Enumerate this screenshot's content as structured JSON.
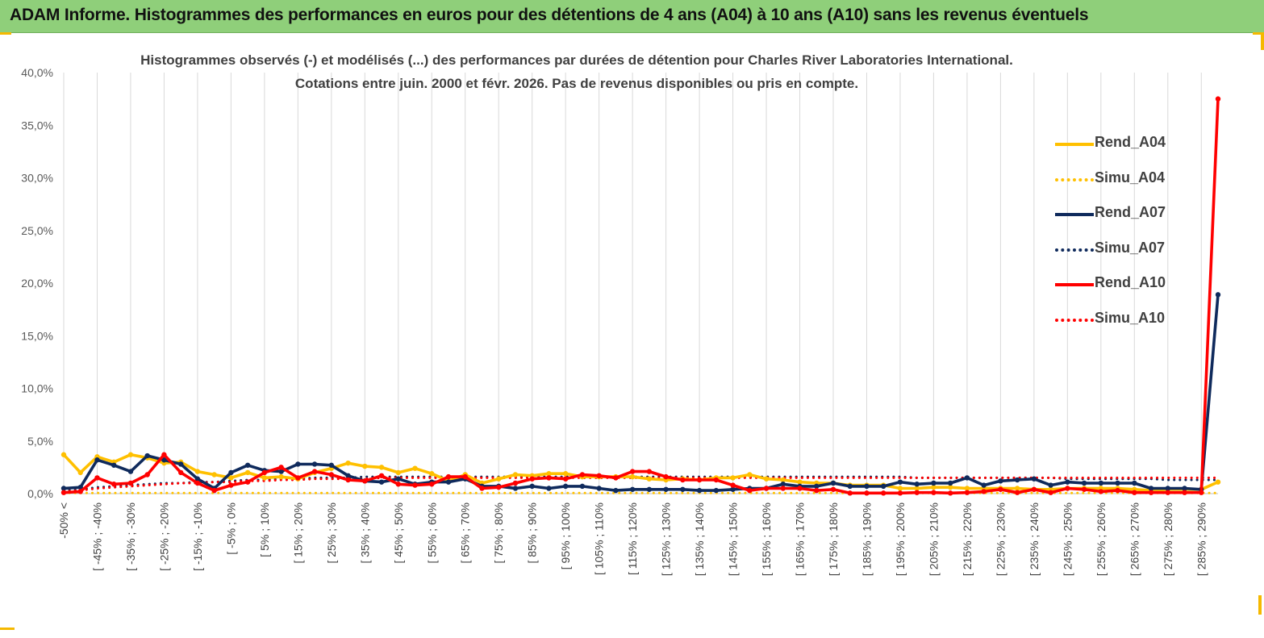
{
  "header": {
    "title": "ADAM Informe. Histogrammes des performances en euros pour des détentions de 4 ans (A04) à 10 ans (A10) sans les revenus éventuels"
  },
  "colors": {
    "banner": "#8fcf7a",
    "corner": "#f5b800",
    "A04": "#ffc000",
    "A07": "#0f2a5c",
    "A10": "#ff0000",
    "grid": "#d9d9d9"
  },
  "chart_data": {
    "type": "line",
    "title_lines": [
      "Histogrammes observés (-) et modélisés (...) des performances par durées de détention pour Charles River Laboratories International.",
      "Cotations entre juin. 2000 et févr. 2026. Pas de revenus disponibles ou pris en compte."
    ],
    "ylim": [
      0,
      40
    ],
    "y_ticks": [
      "0,0%",
      "5,0%",
      "10,0%",
      "15,0%",
      "20,0%",
      "25,0%",
      "30,0%",
      "35,0%",
      "40,0%"
    ],
    "grid": "vertical",
    "legend_position": "right",
    "x_labels": [
      "-50% <",
      "[ -45% ; -40%",
      "[ -35% ; -30%",
      "[ -25% ; -20%",
      "[ -15% ; -10%",
      "[ -5% ; 0%",
      "[ 5% ; 10%",
      "[ 15% ; 20%",
      "[ 25% ; 30%",
      "[ 35% ; 40%",
      "[ 45% ; 50%",
      "[ 55% ; 60%",
      "[ 65% ; 70%",
      "[ 75% ; 80%",
      "[ 85% ; 90%",
      "[ 95% ; 100%",
      "[ 105% ; 110%",
      "[ 115% ; 120%",
      "[ 125% ; 130%",
      "[ 135% ; 140%",
      "[ 145% ; 150%",
      "[ 155% ; 160%",
      "[ 165% ; 170%",
      "[ 175% ; 180%",
      "[ 185% ; 190%",
      "[ 195% ; 200%",
      "[ 205% ; 210%",
      "[ 215% ; 220%",
      "[ 225% ; 230%",
      "[ 235% ; 240%",
      "[ 245% ; 250%",
      "[ 255% ; 260%",
      "[ 265% ; 270%",
      "[ 275% ; 280%",
      "[ 285% ; 290%"
    ],
    "series": [
      {
        "name": "Rend_A04",
        "style": "solid",
        "color": "#ffc000",
        "values": [
          3.7,
          2.0,
          3.5,
          3.0,
          3.7,
          3.4,
          2.9,
          3.0,
          2.1,
          1.8,
          1.5,
          2.0,
          1.5,
          1.6,
          1.4,
          2.0,
          2.4,
          2.9,
          2.6,
          2.5,
          2.0,
          2.4,
          1.9,
          1.2,
          1.8,
          1.0,
          1.4,
          1.8,
          1.7,
          1.9,
          1.9,
          1.6,
          1.6,
          1.6,
          1.6,
          1.4,
          1.3,
          1.4,
          1.3,
          1.5,
          1.5,
          1.8,
          1.4,
          1.3,
          1.1,
          1.0,
          1.0,
          0.8,
          0.8,
          0.8,
          0.5,
          0.5,
          0.6,
          0.6,
          0.5,
          0.5,
          0.5,
          0.5,
          0.4,
          0.4,
          0.5,
          0.5,
          0.5,
          0.5,
          0.4,
          0.3,
          0.4,
          0.4,
          0.4,
          1.1
        ]
      },
      {
        "name": "Simu_A04",
        "style": "dotted",
        "color": "#ffc000",
        "values": [
          0.05,
          0.05,
          0.05,
          0.05,
          0.05,
          0.05,
          0.05,
          0.05,
          0.05,
          0.05,
          0.05,
          0.05,
          0.05,
          0.05,
          0.05,
          0.05,
          0.05,
          0.05,
          0.05,
          0.05,
          0.05,
          0.05,
          0.05,
          0.05,
          0.05,
          0.05,
          0.05,
          0.05,
          0.05,
          0.05,
          0.05,
          0.05,
          0.05,
          0.05,
          0.05,
          0.05,
          0.05,
          0.05,
          0.05,
          0.05,
          0.05,
          0.05,
          0.05,
          0.05,
          0.05,
          0.05,
          0.05,
          0.05,
          0.05,
          0.05,
          0.05,
          0.05,
          0.05,
          0.05,
          0.05,
          0.05,
          0.05,
          0.05,
          0.05,
          0.05,
          0.05,
          0.05,
          0.05,
          0.05,
          0.05,
          0.05,
          0.05,
          0.05,
          0.05,
          0.05
        ]
      },
      {
        "name": "Rend_A07",
        "style": "solid",
        "color": "#0f2a5c",
        "values": [
          0.5,
          0.6,
          3.2,
          2.7,
          2.1,
          3.6,
          3.2,
          2.8,
          1.4,
          0.5,
          2.0,
          2.7,
          2.2,
          2.1,
          2.8,
          2.8,
          2.7,
          1.7,
          1.2,
          1.1,
          1.4,
          0.9,
          1.1,
          1.1,
          1.4,
          0.7,
          0.7,
          0.5,
          0.7,
          0.5,
          0.7,
          0.7,
          0.5,
          0.3,
          0.4,
          0.4,
          0.4,
          0.4,
          0.3,
          0.3,
          0.4,
          0.5,
          0.5,
          0.9,
          0.7,
          0.7,
          1.0,
          0.7,
          0.7,
          0.7,
          1.1,
          0.9,
          1.0,
          1.0,
          1.5,
          0.8,
          1.2,
          1.3,
          1.4,
          0.8,
          1.1,
          1.0,
          1.0,
          1.0,
          1.0,
          0.5,
          0.5,
          0.5,
          0.4,
          18.9
        ]
      },
      {
        "name": "Simu_A07",
        "style": "dotted",
        "color": "#0f2a5c",
        "values": [
          0.3,
          0.4,
          0.6,
          0.7,
          0.8,
          0.9,
          1.0,
          1.0,
          1.1,
          1.1,
          1.2,
          1.3,
          1.3,
          1.4,
          1.4,
          1.5,
          1.5,
          1.5,
          1.6,
          1.6,
          1.6,
          1.6,
          1.6,
          1.6,
          1.6,
          1.6,
          1.6,
          1.6,
          1.6,
          1.6,
          1.6,
          1.6,
          1.6,
          1.6,
          1.6,
          1.6,
          1.6,
          1.6,
          1.6,
          1.6,
          1.6,
          1.6,
          1.6,
          1.6,
          1.6,
          1.6,
          1.6,
          1.6,
          1.6,
          1.6,
          1.6,
          1.5,
          1.5,
          1.5,
          1.5,
          1.5,
          1.5,
          1.5,
          1.5,
          1.5,
          1.4,
          1.4,
          1.4,
          1.4,
          1.4,
          1.4,
          1.3,
          1.3,
          1.3,
          1.3
        ]
      },
      {
        "name": "Rend_A10",
        "style": "solid",
        "color": "#ff0000",
        "values": [
          0.1,
          0.2,
          1.5,
          0.9,
          1.0,
          1.8,
          3.7,
          2.0,
          1.0,
          0.3,
          0.8,
          1.1,
          2.0,
          2.5,
          1.5,
          2.1,
          1.8,
          1.3,
          1.2,
          1.7,
          0.9,
          0.8,
          0.9,
          1.6,
          1.6,
          0.5,
          0.6,
          1.0,
          1.4,
          1.5,
          1.4,
          1.8,
          1.7,
          1.5,
          2.1,
          2.1,
          1.6,
          1.3,
          1.3,
          1.3,
          0.8,
          0.3,
          0.5,
          0.5,
          0.5,
          0.3,
          0.4,
          0.05,
          0.05,
          0.05,
          0.05,
          0.1,
          0.1,
          0.05,
          0.1,
          0.2,
          0.4,
          0.1,
          0.4,
          0.1,
          0.5,
          0.4,
          0.2,
          0.3,
          0.1,
          0.1,
          0.1,
          0.1,
          0.1,
          37.5
        ]
      },
      {
        "name": "Simu_A10",
        "style": "dotted",
        "color": "#ff0000",
        "values": [
          0.2,
          0.3,
          0.5,
          0.6,
          0.7,
          0.8,
          0.9,
          1.0,
          1.0,
          1.1,
          1.1,
          1.2,
          1.2,
          1.3,
          1.3,
          1.4,
          1.4,
          1.4,
          1.4,
          1.5,
          1.5,
          1.5,
          1.5,
          1.5,
          1.5,
          1.5,
          1.5,
          1.5,
          1.5,
          1.5,
          1.5,
          1.5,
          1.5,
          1.5,
          1.5,
          1.5,
          1.5,
          1.5,
          1.5,
          1.5,
          1.5,
          1.5,
          1.5,
          1.5,
          1.5,
          1.5,
          1.5,
          1.5,
          1.5,
          1.5,
          1.5,
          1.5,
          1.5,
          1.5,
          1.5,
          1.5,
          1.5,
          1.5,
          1.5,
          1.5,
          1.5,
          1.5,
          1.5,
          1.5,
          1.5,
          1.5,
          1.5,
          1.5,
          1.5,
          1.5
        ]
      }
    ]
  }
}
